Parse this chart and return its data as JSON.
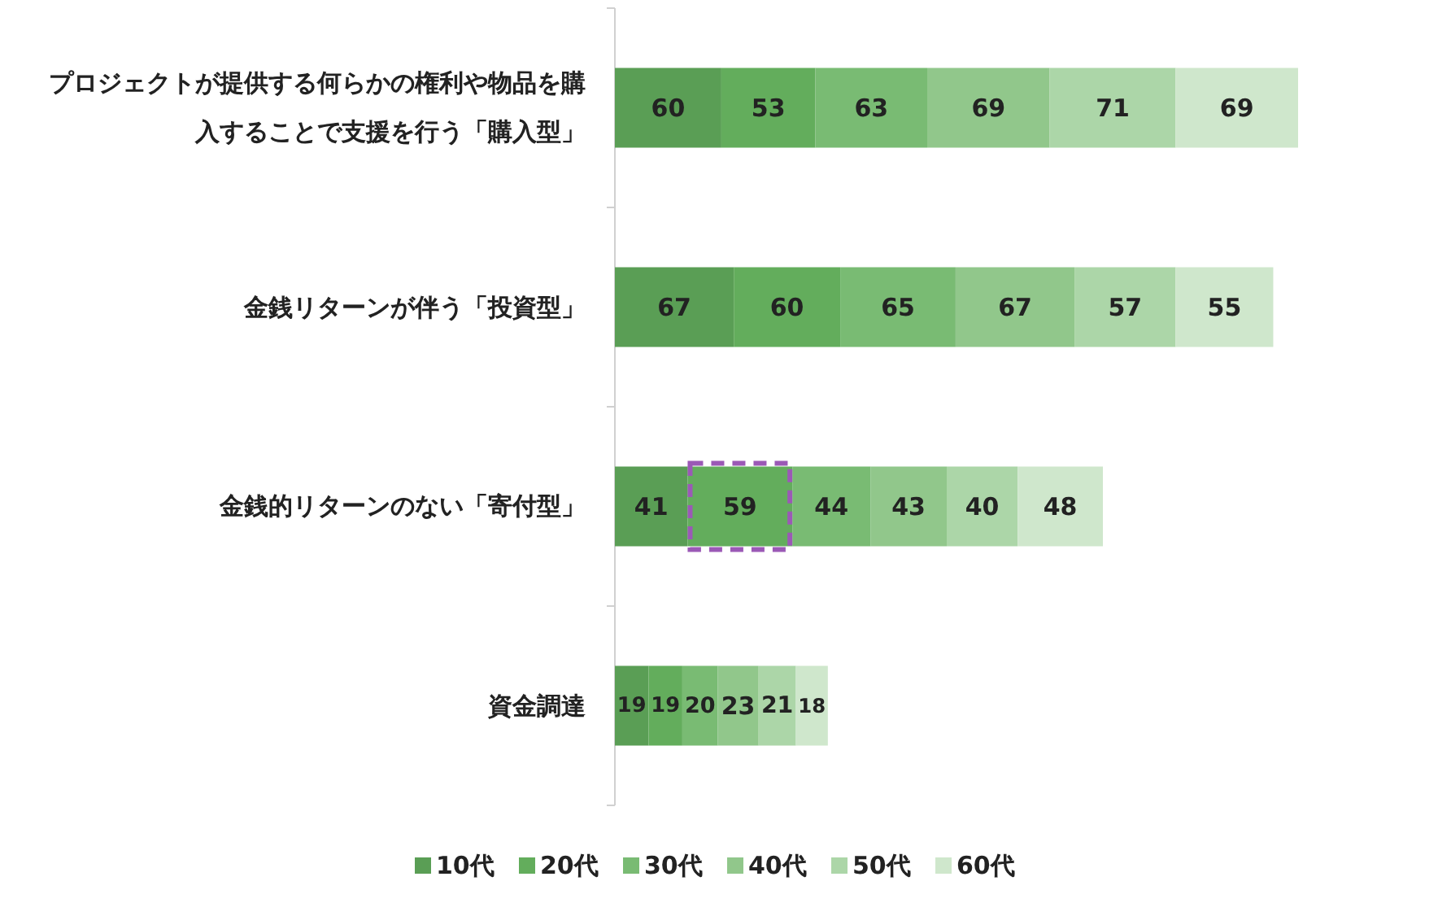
{
  "chart_data": {
    "type": "bar",
    "orientation": "horizontal",
    "stacked": true,
    "data_labels": true,
    "legend": "bottom",
    "categories": [
      "プロジェクトが提供する何らかの権利や物品を購入することで支援を行う「購入型」",
      "金銭リターンが伴う「投資型」",
      "金銭的リターンのない「寄付型」",
      "資金調達"
    ],
    "series": [
      {
        "name": "10代",
        "color": "#5a9e55",
        "values": [
          60,
          67,
          41,
          19
        ]
      },
      {
        "name": "20代",
        "color": "#63ad5c",
        "values": [
          53,
          60,
          59,
          19
        ]
      },
      {
        "name": "30代",
        "color": "#79bb73",
        "values": [
          63,
          65,
          44,
          20
        ]
      },
      {
        "name": "40代",
        "color": "#91c78b",
        "values": [
          69,
          67,
          43,
          23
        ]
      },
      {
        "name": "50代",
        "color": "#acd6a8",
        "values": [
          71,
          57,
          40,
          21
        ]
      },
      {
        "name": "60代",
        "color": "#cfe7cc",
        "values": [
          69,
          55,
          48,
          18
        ]
      }
    ]
  }
}
